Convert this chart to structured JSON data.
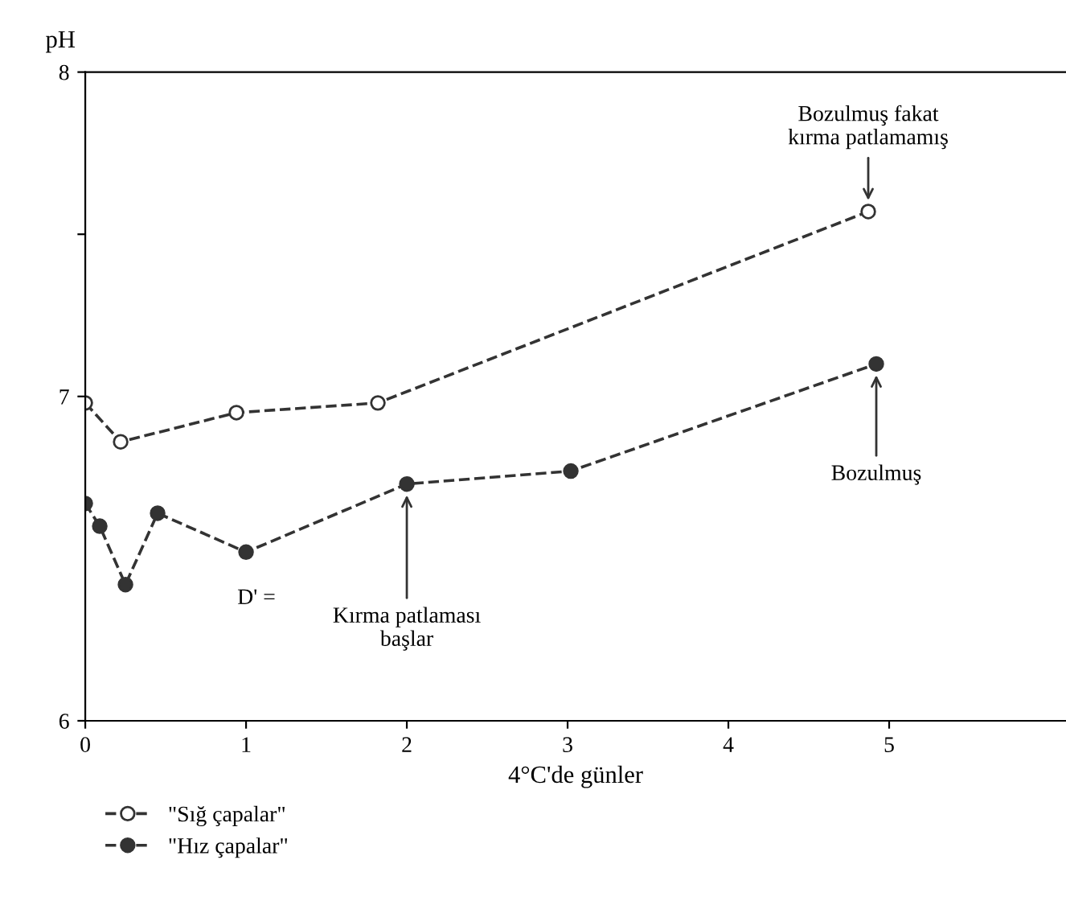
{
  "chart_data": {
    "type": "line",
    "ylabel": "pH",
    "xlabel": "4°C'de günler",
    "xlim": [
      0,
      6.1
    ],
    "xticks": [
      0,
      1,
      2,
      3,
      4,
      5
    ],
    "ylim": [
      6,
      8
    ],
    "yticks": [
      6,
      {
        "value": 7.5,
        "label": null
      },
      7,
      8
    ],
    "grid": false,
    "legend": "bottom left",
    "marker": "circle",
    "line_style": "dashed",
    "series": [
      {
        "name": "\"Sığ çapalar\"",
        "color": "#333333",
        "x": [
          0,
          0.22,
          0.94,
          1.82,
          4.87
        ],
        "values": [
          6.98,
          6.86,
          6.95,
          6.98,
          7.57
        ]
      },
      {
        "name": "\"Hız çapalar\"",
        "color": "#333333",
        "x": [
          0,
          0.09,
          0.25,
          0.45,
          1.0,
          2.0,
          3.02,
          4.92
        ],
        "values": [
          6.67,
          6.6,
          6.42,
          6.64,
          6.52,
          6.73,
          6.77,
          7.1
        ]
      }
    ],
    "annotations": [
      {
        "text": "Bozulmuş fakat\nkırma patlamamış",
        "x": 4.87,
        "y": 7.57
      },
      {
        "text": "Bozulmuş",
        "x": 4.92,
        "y": 7.1
      },
      {
        "text": "Kırma patlaması\nbaşlar",
        "x": 2.0,
        "y": 6.73
      },
      "D' ="
    ]
  }
}
